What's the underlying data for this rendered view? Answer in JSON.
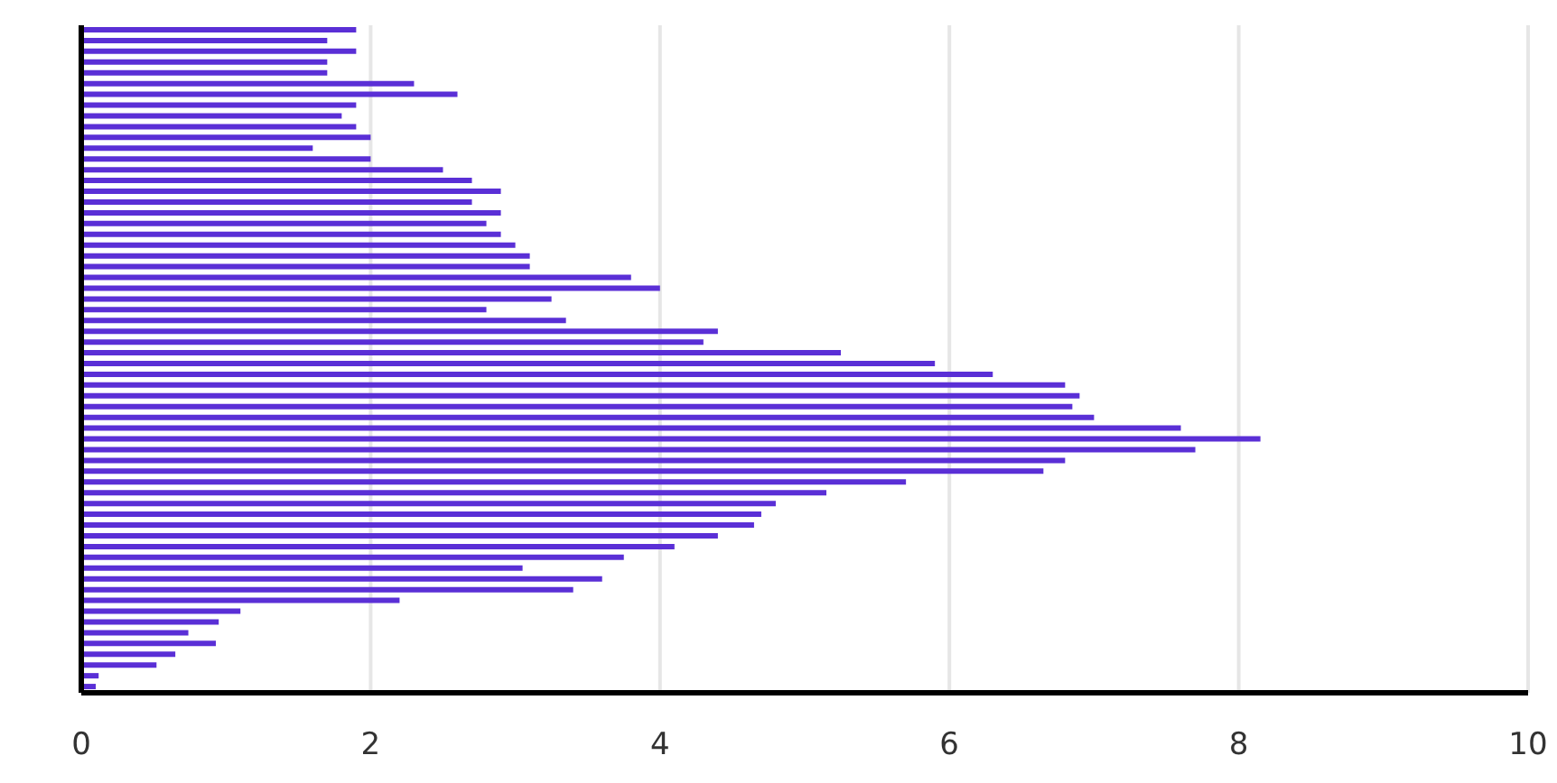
{
  "chart_data": {
    "type": "bar",
    "orientation": "horizontal",
    "color": "#5a2fd6",
    "categories": [
      null,
      null,
      null,
      null,
      null,
      null,
      null,
      null,
      null,
      null,
      null,
      null,
      null,
      null,
      null,
      null,
      null,
      null,
      null,
      null,
      null,
      null,
      null,
      null,
      null,
      null,
      null,
      null,
      null,
      null,
      null,
      null,
      null,
      null,
      null,
      null,
      null,
      null,
      null,
      null,
      null,
      null,
      null,
      null,
      null,
      null,
      null,
      null,
      null,
      null,
      null,
      null,
      null,
      null,
      null,
      null,
      null,
      null,
      null,
      null,
      null,
      null
    ],
    "values": [
      1.9,
      1.7,
      1.9,
      1.7,
      1.7,
      2.3,
      2.6,
      1.9,
      1.8,
      1.9,
      2.0,
      1.6,
      2.0,
      2.5,
      2.7,
      2.9,
      2.7,
      2.9,
      2.8,
      2.9,
      3.0,
      3.1,
      3.1,
      3.8,
      4.0,
      3.25,
      2.8,
      3.35,
      4.4,
      4.3,
      5.25,
      5.9,
      6.3,
      6.8,
      6.9,
      6.85,
      7.0,
      7.6,
      8.15,
      7.7,
      6.8,
      6.65,
      5.7,
      5.15,
      4.8,
      4.7,
      4.65,
      4.4,
      4.1,
      3.75,
      3.05,
      3.6,
      3.4,
      2.2,
      1.1,
      0.95,
      0.74,
      0.93,
      0.65,
      0.52,
      0.12,
      0.1
    ],
    "xlim": [
      0,
      10
    ],
    "xticks": [
      0,
      2,
      4,
      6,
      8,
      10
    ],
    "grid": "x",
    "tick_labels": "x"
  }
}
